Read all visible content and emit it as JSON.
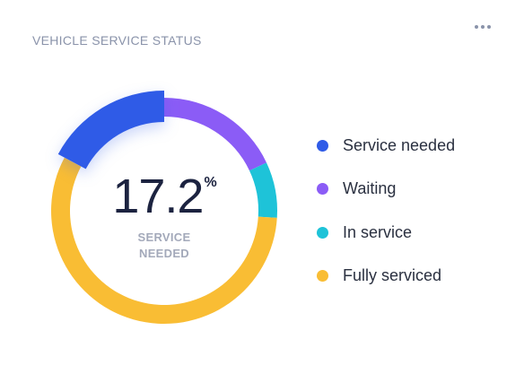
{
  "card": {
    "title": "VEHICLE SERVICE STATUS",
    "menu_icon": "more-horizontal-icon"
  },
  "summary": {
    "value": "17.2",
    "unit": "%",
    "label_line1": "SERVICE",
    "label_line2": "NEEDED"
  },
  "chart_data": {
    "type": "pie",
    "variant": "donut",
    "title": "VEHICLE SERVICE STATUS",
    "series": [
      {
        "name": "Service needed",
        "value": 17.2,
        "color": "#2f5be7",
        "emphasized": true
      },
      {
        "name": "Waiting",
        "value": 18.0,
        "color": "#8b5cf6"
      },
      {
        "name": "In service",
        "value": 8.0,
        "color": "#1ec3d8"
      },
      {
        "name": "Fully serviced",
        "value": 56.8,
        "color": "#f9bd34"
      }
    ],
    "legend_position": "right"
  }
}
